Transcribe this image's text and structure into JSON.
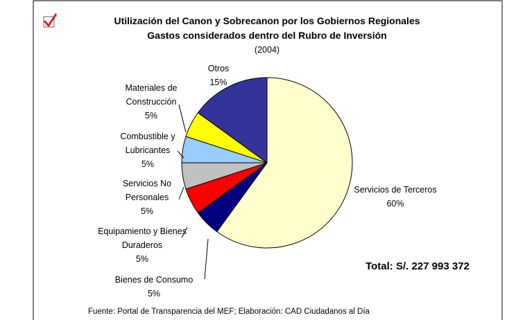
{
  "chart_data": {
    "type": "pie",
    "title": "Utilización del Canon y Sobrecanon por los Gobiernos Regionales",
    "subtitle": "Gastos considerados dentro del Rubro de Inversión",
    "period": "(2004)",
    "categories": [
      "Servicios de Terceros",
      "Bienes de Consumo",
      "Equipamiento y Bienes\nDuraderos",
      "Servicios No\nPersonales",
      "Combustible y\nLubricantes",
      "Materiales de\nConstrucción",
      "Otros"
    ],
    "values": [
      60,
      5,
      5,
      5,
      5,
      5,
      15
    ],
    "value_labels": [
      "60%",
      "5%",
      "5%",
      "5%",
      "5%",
      "5%",
      "15%"
    ],
    "colors": [
      "#FFFFCC",
      "#000080",
      "#FF0000",
      "#C0C0C0",
      "#99CCFF",
      "#FFFF00",
      "#333399"
    ],
    "annotation": "Total: S/. 227 993 372",
    "source": "Fuente: Portal de Transparencia del MEF; Elaboración: CAD Ciudadanos al Día"
  }
}
